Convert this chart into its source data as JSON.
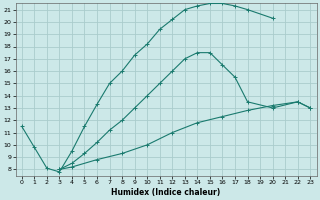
{
  "xlabel": "Humidex (Indice chaleur)",
  "bg_color": "#cce8e8",
  "grid_color": "#aacccc",
  "line_color": "#1a7a6e",
  "xlim": [
    -0.5,
    23.5
  ],
  "ylim": [
    7.5,
    21.5
  ],
  "xticks": [
    0,
    1,
    2,
    3,
    4,
    5,
    6,
    7,
    8,
    9,
    10,
    11,
    12,
    13,
    14,
    15,
    16,
    17,
    18,
    19,
    20,
    21,
    22,
    23
  ],
  "yticks": [
    8,
    9,
    10,
    11,
    12,
    13,
    14,
    15,
    16,
    17,
    18,
    19,
    20,
    21
  ],
  "line1_x": [
    0,
    1,
    2,
    3,
    4,
    5,
    6,
    7,
    8,
    9,
    10,
    11,
    12,
    13,
    14,
    15,
    16,
    17,
    18,
    20
  ],
  "line1_y": [
    11.5,
    9.8,
    8.1,
    7.8,
    9.5,
    11.5,
    13.3,
    15.0,
    16.0,
    17.3,
    18.2,
    19.4,
    20.2,
    21.0,
    21.3,
    21.5,
    21.5,
    21.3,
    21.0,
    20.3
  ],
  "line2_x": [
    3,
    4,
    5,
    6,
    7,
    8,
    9,
    10,
    11,
    12,
    13,
    14,
    15,
    16,
    17,
    18,
    20,
    22,
    23
  ],
  "line2_y": [
    8.0,
    8.5,
    9.3,
    10.2,
    11.2,
    12.0,
    13.0,
    14.0,
    15.0,
    16.0,
    17.0,
    17.5,
    17.5,
    16.5,
    15.5,
    13.5,
    13.0,
    13.5,
    13.0
  ],
  "line3_x": [
    3,
    4,
    6,
    8,
    10,
    12,
    14,
    16,
    18,
    20,
    22,
    23
  ],
  "line3_y": [
    8.0,
    8.2,
    8.8,
    9.3,
    10.0,
    11.0,
    11.8,
    12.3,
    12.8,
    13.2,
    13.5,
    13.0
  ]
}
